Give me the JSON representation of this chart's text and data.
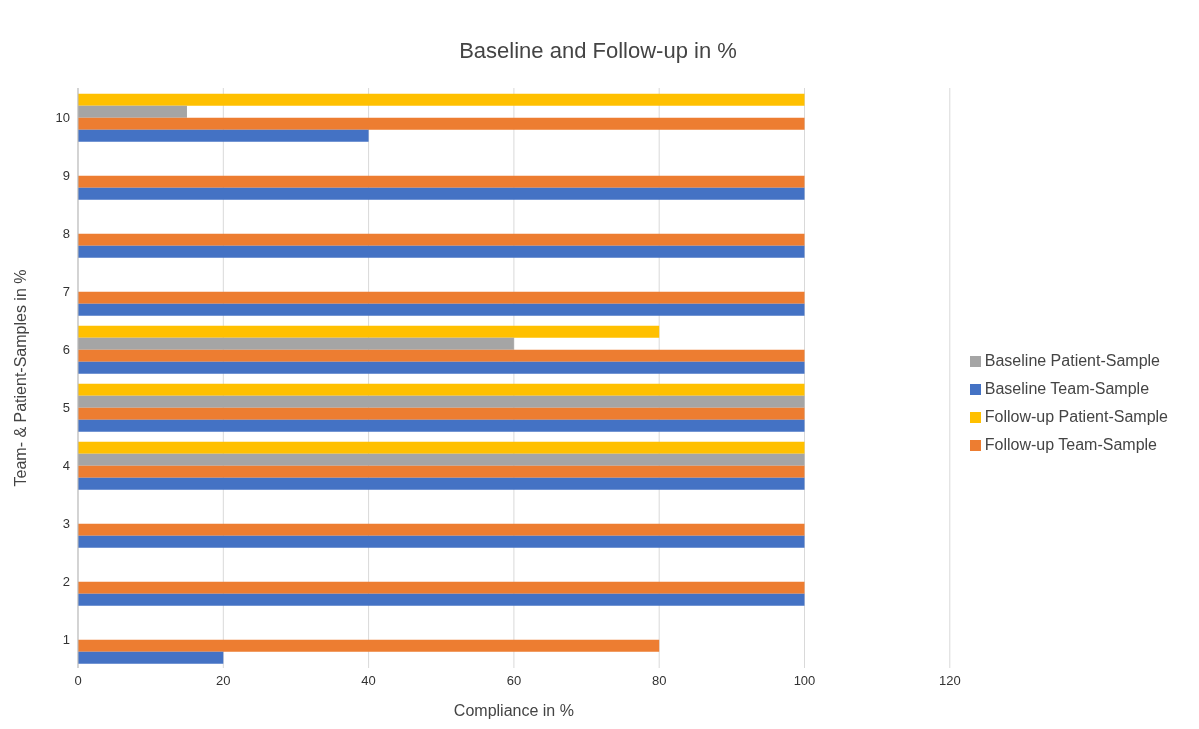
{
  "chart_data": {
    "type": "bar",
    "orientation": "horizontal",
    "title": "Baseline and Follow-up in %",
    "xlabel": "Compliance in %",
    "ylabel": "Team- & Patient-Samples in %",
    "categories": [
      "10",
      "9",
      "8",
      "7",
      "6",
      "5",
      "4",
      "3",
      "2",
      "1"
    ],
    "series": [
      {
        "name": "Baseline Team-Sample",
        "color": "#4472c4",
        "values": [
          40,
          100,
          100,
          100,
          100,
          100,
          100,
          100,
          100,
          20
        ]
      },
      {
        "name": "Follow-up Team-Sample",
        "color": "#ed7d31",
        "values": [
          100,
          100,
          100,
          100,
          100,
          100,
          100,
          100,
          100,
          80
        ]
      },
      {
        "name": "Baseline Patient-Sample",
        "color": "#a5a5a5",
        "values": [
          15,
          null,
          null,
          null,
          60,
          100,
          100,
          null,
          null,
          null
        ]
      },
      {
        "name": "Follow-up Patient-Sample",
        "color": "#ffc000",
        "values": [
          100,
          null,
          null,
          null,
          80,
          100,
          100,
          null,
          null,
          null
        ]
      }
    ],
    "xlim": [
      0,
      120
    ],
    "xticks": [
      0,
      20,
      40,
      60,
      80,
      100,
      120
    ],
    "grid": "x",
    "legend": "right"
  }
}
